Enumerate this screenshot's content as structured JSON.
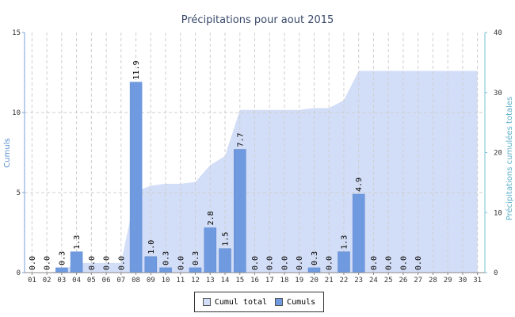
{
  "chart_data": {
    "type": "bar",
    "title": "Précipitations pour aout 2015",
    "ylabel": "Cumuls",
    "y2label": "Précipitations cumulées totales",
    "ylim": [
      0,
      15
    ],
    "y2lim": [
      0,
      40
    ],
    "yticks": [
      "0",
      "5",
      "10",
      "15"
    ],
    "y2ticks": [
      "0",
      "10",
      "20",
      "30",
      "40"
    ],
    "grid": true,
    "legend_position": "bottom-center",
    "categories": [
      "01",
      "02",
      "03",
      "04",
      "05",
      "06",
      "07",
      "08",
      "09",
      "10",
      "11",
      "12",
      "13",
      "14",
      "15",
      "16",
      "17",
      "18",
      "19",
      "20",
      "21",
      "22",
      "23",
      "24",
      "25",
      "26",
      "27",
      "28",
      "29",
      "30",
      "31"
    ],
    "series": [
      {
        "name": "Cumuls",
        "type": "bar",
        "axis": "left",
        "color": "#6f9ae0",
        "values": [
          0.0,
          0.0,
          0.3,
          1.3,
          0.0,
          0.0,
          0.0,
          11.9,
          1.0,
          0.3,
          0.0,
          0.3,
          2.8,
          1.5,
          7.7,
          0.0,
          0.0,
          0.0,
          0.0,
          0.3,
          0.0,
          1.3,
          4.9,
          0.0,
          0.0,
          0.0,
          0.0,
          null,
          null,
          null,
          null
        ],
        "labels": [
          "0.0",
          "0.0",
          "0.3",
          "1.3",
          "0.0",
          "0.0",
          "0.0",
          "11.9",
          "1.0",
          "0.3",
          "0.0",
          "0.3",
          "2.8",
          "1.5",
          "7.7",
          "0.0",
          "0.0",
          "0.0",
          "0.0",
          "0.3",
          "0.0",
          "1.3",
          "4.9",
          "0.0",
          "0.0",
          "0.0",
          "0.0",
          "",
          "",
          "",
          ""
        ]
      },
      {
        "name": "Cumul total",
        "type": "area",
        "axis": "right",
        "color": "#d2ddf7",
        "values": [
          0.0,
          0.0,
          0.3,
          1.6,
          1.6,
          1.6,
          1.6,
          13.5,
          14.5,
          14.8,
          14.8,
          15.1,
          17.9,
          19.4,
          27.1,
          27.1,
          27.1,
          27.1,
          27.1,
          27.4,
          27.4,
          28.7,
          33.6,
          33.6,
          33.6,
          33.6,
          33.6,
          33.6,
          33.6,
          33.6,
          33.6
        ]
      }
    ]
  },
  "legend": {
    "items": [
      {
        "label": "Cumul total",
        "color": "#d2ddf7"
      },
      {
        "label": "Cumuls",
        "color": "#6f9ae0"
      }
    ]
  }
}
